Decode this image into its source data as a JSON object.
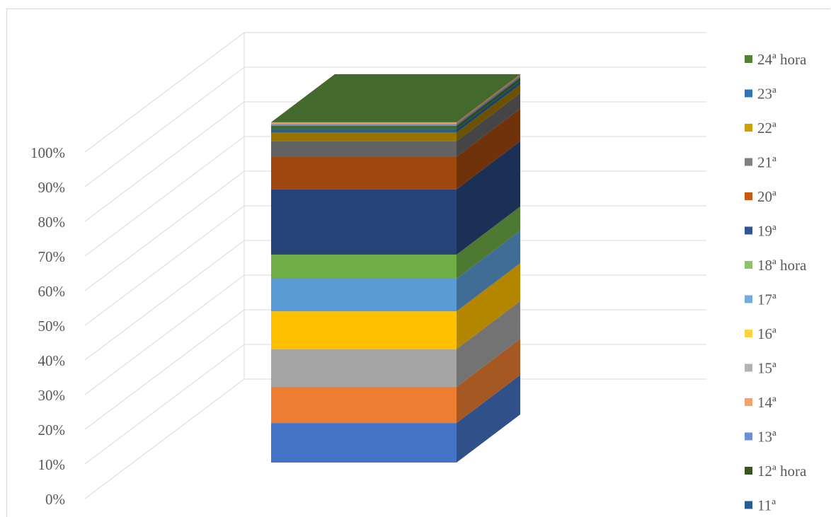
{
  "chart_data": {
    "type": "bar",
    "stacked": true,
    "three_d": true,
    "title": "",
    "xlabel": "",
    "ylabel": "",
    "ylim": [
      0,
      100
    ],
    "y_ticks": [
      "0%",
      "10%",
      "20%",
      "30%",
      "40%",
      "50%",
      "60%",
      "70%",
      "80%",
      "90%",
      "100%"
    ],
    "grid": true,
    "legend_position": "right",
    "categories": [
      ""
    ],
    "series": [
      {
        "name": "11ª",
        "legend": "11ª",
        "color": "#4472C4",
        "values": [
          11.5
        ]
      },
      {
        "name": "12ª hora",
        "legend": "12ª hora",
        "color": "#ED7D31",
        "values": [
          10.5
        ]
      },
      {
        "name": "13ª",
        "legend": "13ª",
        "color": "#A5A5A5",
        "values": [
          11.0
        ]
      },
      {
        "name": "14ª",
        "legend": "14ª",
        "color": "#FFC000",
        "values": [
          11.0
        ]
      },
      {
        "name": "15ª",
        "legend": "15ª",
        "color": "#5B9BD5",
        "values": [
          9.5
        ]
      },
      {
        "name": "16ª",
        "legend": "16ª",
        "color": "#70AD47",
        "values": [
          7.0
        ]
      },
      {
        "name": "17ª",
        "legend": "17ª",
        "color": "#264478",
        "values": [
          19.0
        ]
      },
      {
        "name": "18ª hora",
        "legend": "18ª hora",
        "color": "#9E480E",
        "values": [
          9.5
        ]
      },
      {
        "name": "19ª",
        "legend": "19ª",
        "color": "#636363",
        "values": [
          4.5
        ]
      },
      {
        "name": "20ª",
        "legend": "20ª",
        "color": "#997300",
        "values": [
          2.5
        ]
      },
      {
        "name": "21ª",
        "legend": "21ª",
        "color": "#255E91",
        "values": [
          1.0
        ]
      },
      {
        "name": "22ª",
        "legend": "22ª",
        "color": "#43682B",
        "values": [
          1.0
        ]
      },
      {
        "name": "23ª",
        "legend": "23ª",
        "color": "#698ED0",
        "values": [
          0.5
        ]
      },
      {
        "name": "24ª hora",
        "legend": "24ª hora",
        "color": "#F1975A",
        "values": [
          0.5
        ]
      }
    ],
    "legend": [
      {
        "label": "24ª hora",
        "color": "#548235"
      },
      {
        "label": "23ª",
        "color": "#2E75B6"
      },
      {
        "label": "22ª",
        "color": "#C9A100"
      },
      {
        "label": "21ª",
        "color": "#808080"
      },
      {
        "label": "20ª",
        "color": "#C55A11"
      },
      {
        "label": "19ª",
        "color": "#2F5597"
      },
      {
        "label": "18ª hora",
        "color": "#8FC16A"
      },
      {
        "label": "17ª",
        "color": "#76A9DD"
      },
      {
        "label": "16ª",
        "color": "#FFD23F"
      },
      {
        "label": "15ª",
        "color": "#B2B2B2"
      },
      {
        "label": "14ª",
        "color": "#F4A26B"
      },
      {
        "label": "13ª",
        "color": "#6E8FD6"
      },
      {
        "label": "12ª hora",
        "color": "#375623"
      },
      {
        "label": "11ª",
        "color": "#255E91"
      }
    ],
    "top_face_color": "#44692C"
  }
}
